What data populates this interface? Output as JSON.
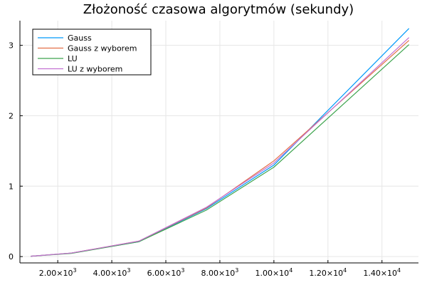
{
  "chart_data": {
    "type": "line",
    "title": "Złożoność czasowa algorytmów (sekundy)",
    "xlabel": "",
    "ylabel": "",
    "xlim": [
      600,
      15350
    ],
    "ylim": [
      -0.09,
      3.35
    ],
    "x_ticks": [
      {
        "value": 2000,
        "mantissa": "2.00×10",
        "exp": "3"
      },
      {
        "value": 4000,
        "mantissa": "4.00×10",
        "exp": "3"
      },
      {
        "value": 6000,
        "mantissa": "6.00×10",
        "exp": "3"
      },
      {
        "value": 8000,
        "mantissa": "8.00×10",
        "exp": "3"
      },
      {
        "value": 10000,
        "mantissa": "1.00×10",
        "exp": "4"
      },
      {
        "value": 12000,
        "mantissa": "1.20×10",
        "exp": "4"
      },
      {
        "value": 14000,
        "mantissa": "1.40×10",
        "exp": "4"
      }
    ],
    "y_ticks": [
      {
        "value": 0,
        "label": "0"
      },
      {
        "value": 1,
        "label": "1"
      },
      {
        "value": 2,
        "label": "2"
      },
      {
        "value": 3,
        "label": "3"
      }
    ],
    "grid": true,
    "legend_position": "top-left",
    "x": [
      1000,
      2500,
      5000,
      7500,
      10000,
      15000
    ],
    "series": [
      {
        "name": "Gauss",
        "color": "#009AFA",
        "values": [
          0.005,
          0.05,
          0.21,
          0.68,
          1.3,
          3.24
        ]
      },
      {
        "name": "Gauss z wyborem",
        "color": "#E36F47",
        "values": [
          0.005,
          0.05,
          0.22,
          0.69,
          1.36,
          3.07
        ]
      },
      {
        "name": "LU",
        "color": "#3EA44E",
        "values": [
          0.005,
          0.045,
          0.21,
          0.66,
          1.27,
          3.01
        ]
      },
      {
        "name": "LU z wyborem",
        "color": "#C371D2",
        "values": [
          0.005,
          0.05,
          0.22,
          0.7,
          1.33,
          3.11
        ]
      }
    ]
  }
}
